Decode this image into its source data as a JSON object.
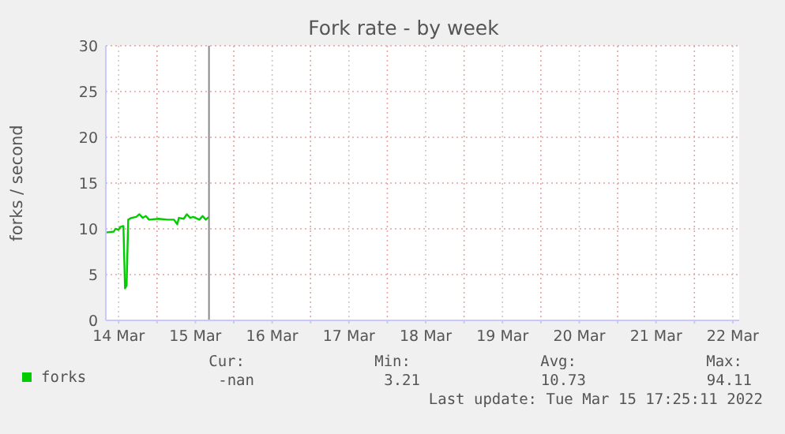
{
  "chart_data": {
    "type": "line",
    "title": "Fork rate - by week",
    "ylabel": "forks / second",
    "x": [
      "2022-03-14T08:00",
      "2022-03-14T10:30",
      "2022-03-14T11:00",
      "2022-03-14T12:00",
      "2022-03-14T12:30",
      "2022-03-14T13:30",
      "2022-03-14T14:00",
      "2022-03-14T14:30",
      "2022-03-14T15:00",
      "2022-03-14T16:00",
      "2022-03-14T17:30",
      "2022-03-14T18:30",
      "2022-03-14T19:30",
      "2022-03-14T20:30",
      "2022-03-14T21:30",
      "2022-03-15T00:30",
      "2022-03-15T03:20",
      "2022-03-15T05:20",
      "2022-03-15T06:20",
      "2022-03-15T06:50",
      "2022-03-15T08:20",
      "2022-03-15T09:20",
      "2022-03-15T10:20",
      "2022-03-15T11:20",
      "2022-03-15T13:15",
      "2022-03-15T14:15",
      "2022-03-15T15:15",
      "2022-03-15T16:15"
    ],
    "series": [
      {
        "name": "forks",
        "color": "#00cc00",
        "values": [
          9.6,
          9.7,
          10.0,
          9.9,
          10.2,
          10.3,
          3.5,
          3.8,
          11.0,
          11.2,
          11.3,
          11.6,
          11.2,
          11.4,
          11.0,
          11.1,
          11.0,
          11.0,
          10.5,
          11.2,
          11.1,
          11.6,
          11.2,
          11.3,
          11.0,
          11.4,
          11.0,
          11.3
        ]
      }
    ],
    "xlim": [
      "2022-03-14T08:00",
      "2022-03-22T14:00"
    ],
    "xticks": [
      {
        "value": "2022-03-14T12:00",
        "label": "14 Mar"
      },
      {
        "value": "2022-03-15T00:00",
        "label": null
      },
      {
        "value": "2022-03-15T12:00",
        "label": "15 Mar"
      },
      {
        "value": "2022-03-16T00:00",
        "label": null
      },
      {
        "value": "2022-03-16T12:00",
        "label": "16 Mar"
      },
      {
        "value": "2022-03-17T00:00",
        "label": null
      },
      {
        "value": "2022-03-17T12:00",
        "label": "17 Mar"
      },
      {
        "value": "2022-03-18T00:00",
        "label": null
      },
      {
        "value": "2022-03-18T12:00",
        "label": "18 Mar"
      },
      {
        "value": "2022-03-19T00:00",
        "label": null
      },
      {
        "value": "2022-03-19T12:00",
        "label": "19 Mar"
      },
      {
        "value": "2022-03-20T00:00",
        "label": null
      },
      {
        "value": "2022-03-20T12:00",
        "label": "20 Mar"
      },
      {
        "value": "2022-03-21T00:00",
        "label": null
      },
      {
        "value": "2022-03-21T12:00",
        "label": "21 Mar"
      },
      {
        "value": "2022-03-22T00:00",
        "label": null
      },
      {
        "value": "2022-03-22T12:00",
        "label": "22 Mar"
      }
    ],
    "ylim": [
      0,
      30
    ],
    "yticks": [
      0,
      5,
      10,
      15,
      20,
      25,
      30
    ],
    "grid": true,
    "legend": "bottom left",
    "marker": "none",
    "line_style": "solid",
    "ref_lines": [
      {
        "axis": "x",
        "value": "2022-03-15T16:15",
        "color": "#888888"
      }
    ],
    "annotations": [
      "Cur:",
      "Min:",
      "Avg:",
      "Max:",
      "-nan",
      "3.21",
      "10.73",
      "94.11",
      "Last update: Tue Mar 15 17:25:11 2022"
    ]
  }
}
